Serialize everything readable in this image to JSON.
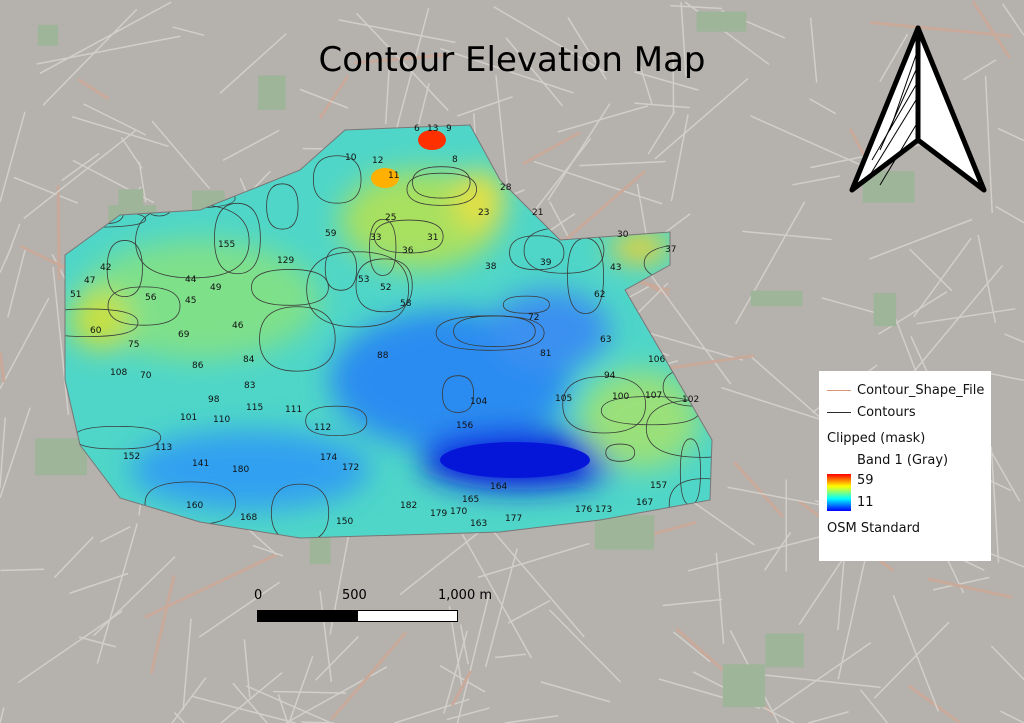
{
  "title": "Contour Elevation Map",
  "legend": {
    "items": [
      {
        "label": "Contour_Shape_File",
        "color": "#d9957a"
      },
      {
        "label": "Contours",
        "color": "#2a2a2a"
      }
    ],
    "layer": "Clipped (mask)",
    "band": "Band 1 (Gray)",
    "max": "59",
    "min": "11",
    "basemap": "OSM Standard",
    "ramp": [
      "#ff0000",
      "#ffff00",
      "#00ffff",
      "#0000ff"
    ]
  },
  "scalebar": {
    "labels": [
      "0",
      "500",
      "1,000 m"
    ]
  },
  "north_arrow": "north-arrow-icon",
  "contour_labels": [
    "6",
    "13",
    "9",
    "8",
    "10",
    "12",
    "11",
    "25",
    "28",
    "21",
    "23",
    "33",
    "30",
    "37",
    "43",
    "42",
    "47",
    "51",
    "59",
    "129",
    "155",
    "31",
    "36",
    "38",
    "39",
    "44",
    "45",
    "49",
    "56",
    "46",
    "60",
    "69",
    "75",
    "70",
    "108",
    "88",
    "86",
    "84",
    "83",
    "98",
    "101",
    "110",
    "115",
    "111",
    "112",
    "113",
    "152",
    "141",
    "180",
    "160",
    "168",
    "174",
    "172",
    "150",
    "182",
    "179",
    "170",
    "165",
    "164",
    "163",
    "177",
    "176",
    "173",
    "167",
    "157",
    "156",
    "104",
    "105",
    "106",
    "107",
    "102",
    "94",
    "100",
    "81",
    "72",
    "63",
    "62",
    "52",
    "53",
    "58"
  ]
}
